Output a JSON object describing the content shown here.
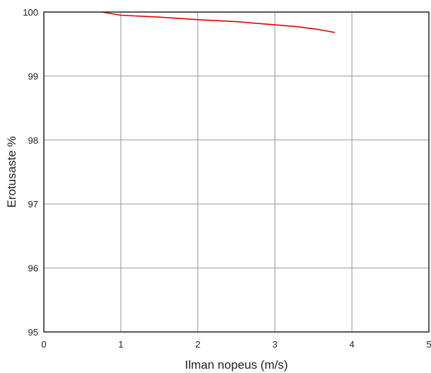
{
  "chart_data": {
    "type": "line",
    "title": "",
    "xlabel": "Ilman nopeus (m/s)",
    "ylabel": "Erotusaste %",
    "xlim": [
      0,
      5
    ],
    "ylim": [
      95,
      100
    ],
    "x_ticks": [
      "0",
      "1",
      "2",
      "3",
      "4",
      "5"
    ],
    "y_ticks": [
      "95",
      "96",
      "97",
      "98",
      "99",
      "100"
    ],
    "grid": true,
    "series": [
      {
        "color": "#e00000",
        "points": [
          [
            0.75,
            100.0
          ],
          [
            1.0,
            99.95
          ],
          [
            1.5,
            99.92
          ],
          [
            2.0,
            99.88
          ],
          [
            2.5,
            99.85
          ],
          [
            3.0,
            99.8
          ],
          [
            3.3,
            99.77
          ],
          [
            3.55,
            99.73
          ],
          [
            3.78,
            99.68
          ]
        ]
      }
    ]
  }
}
